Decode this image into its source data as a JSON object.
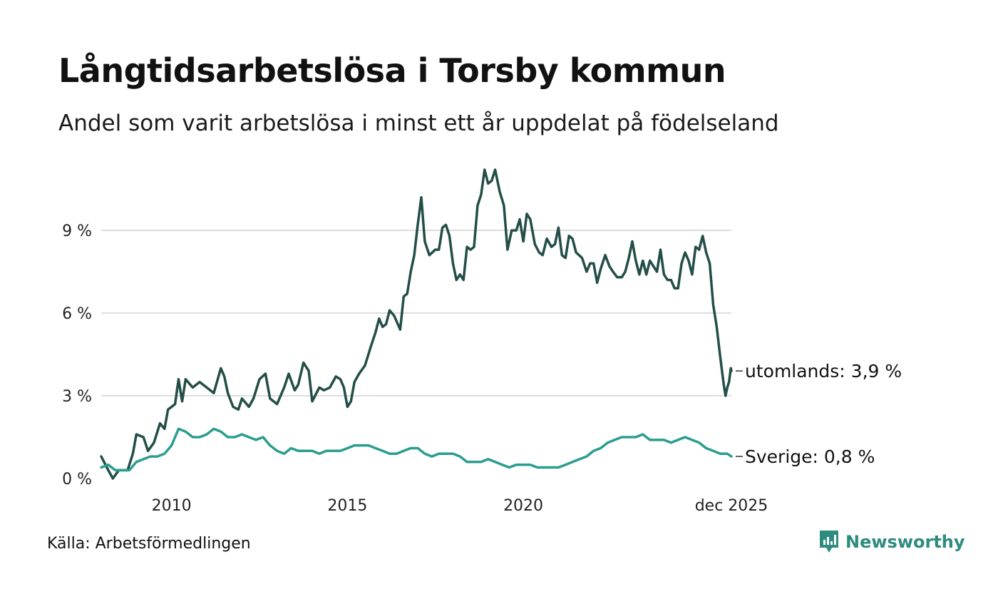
{
  "title": "Långtidsarbetslösa i Torsby kommun",
  "subtitle": "Andel som varit arbetslösa i minst ett år uppdelat på födelseland",
  "source": "Källa: Arbetsförmedlingen",
  "brand": "Newsworthy",
  "colors": {
    "utomlands": "#234e48",
    "sverige": "#2a9d8f",
    "grid": "#dddddd",
    "brand": "#2e8b7f"
  },
  "chart_data": {
    "type": "line",
    "title": "Långtidsarbetslösa i Torsby kommun",
    "xlabel": "",
    "ylabel": "",
    "xlim": [
      2008.0,
      2025.917
    ],
    "ylim": [
      0,
      11.2
    ],
    "yticks": [
      0,
      3,
      6,
      9
    ],
    "ytick_labels": [
      "0 %",
      "3 %",
      "6 %",
      "9 %"
    ],
    "xticks": [
      2010,
      2015,
      2020,
      2025.917
    ],
    "xtick_labels": [
      "2010",
      "2015",
      "2020",
      "dec 2025"
    ],
    "grid": true,
    "series": [
      {
        "name": "utomlands",
        "end_label": "utomlands: 3,9 %",
        "points": [
          [
            2008.0,
            0.8
          ],
          [
            2008.2,
            0.3
          ],
          [
            2008.33,
            0.0
          ],
          [
            2008.5,
            0.3
          ],
          [
            2008.75,
            0.3
          ],
          [
            2008.9,
            0.9
          ],
          [
            2009.0,
            1.6
          ],
          [
            2009.2,
            1.5
          ],
          [
            2009.33,
            1.0
          ],
          [
            2009.5,
            1.3
          ],
          [
            2009.67,
            2.0
          ],
          [
            2009.8,
            1.8
          ],
          [
            2009.9,
            2.5
          ],
          [
            2010.0,
            2.6
          ],
          [
            2010.1,
            2.7
          ],
          [
            2010.2,
            3.6
          ],
          [
            2010.3,
            2.8
          ],
          [
            2010.4,
            3.6
          ],
          [
            2010.6,
            3.3
          ],
          [
            2010.8,
            3.5
          ],
          [
            2011.0,
            3.3
          ],
          [
            2011.2,
            3.1
          ],
          [
            2011.4,
            4.0
          ],
          [
            2011.5,
            3.7
          ],
          [
            2011.6,
            3.1
          ],
          [
            2011.75,
            2.6
          ],
          [
            2011.9,
            2.5
          ],
          [
            2012.0,
            2.9
          ],
          [
            2012.2,
            2.6
          ],
          [
            2012.33,
            2.9
          ],
          [
            2012.5,
            3.6
          ],
          [
            2012.67,
            3.8
          ],
          [
            2012.8,
            2.9
          ],
          [
            2013.0,
            2.7
          ],
          [
            2013.2,
            3.3
          ],
          [
            2013.33,
            3.8
          ],
          [
            2013.5,
            3.2
          ],
          [
            2013.6,
            3.4
          ],
          [
            2013.75,
            4.2
          ],
          [
            2013.9,
            3.9
          ],
          [
            2014.0,
            2.8
          ],
          [
            2014.2,
            3.3
          ],
          [
            2014.33,
            3.2
          ],
          [
            2014.5,
            3.3
          ],
          [
            2014.67,
            3.7
          ],
          [
            2014.8,
            3.6
          ],
          [
            2014.9,
            3.3
          ],
          [
            2015.0,
            2.6
          ],
          [
            2015.1,
            2.8
          ],
          [
            2015.2,
            3.5
          ],
          [
            2015.33,
            3.8
          ],
          [
            2015.5,
            4.1
          ],
          [
            2015.67,
            4.8
          ],
          [
            2015.8,
            5.3
          ],
          [
            2015.9,
            5.8
          ],
          [
            2016.0,
            5.5
          ],
          [
            2016.1,
            5.6
          ],
          [
            2016.2,
            6.1
          ],
          [
            2016.33,
            5.9
          ],
          [
            2016.5,
            5.4
          ],
          [
            2016.6,
            6.6
          ],
          [
            2016.7,
            6.7
          ],
          [
            2016.8,
            7.5
          ],
          [
            2016.9,
            8.1
          ],
          [
            2017.0,
            9.2
          ],
          [
            2017.1,
            10.2
          ],
          [
            2017.2,
            8.6
          ],
          [
            2017.33,
            8.1
          ],
          [
            2017.5,
            8.3
          ],
          [
            2017.6,
            8.3
          ],
          [
            2017.7,
            9.1
          ],
          [
            2017.8,
            9.2
          ],
          [
            2017.9,
            8.8
          ],
          [
            2018.0,
            7.8
          ],
          [
            2018.1,
            7.2
          ],
          [
            2018.2,
            7.4
          ],
          [
            2018.3,
            7.2
          ],
          [
            2018.4,
            8.4
          ],
          [
            2018.5,
            8.3
          ],
          [
            2018.6,
            8.4
          ],
          [
            2018.7,
            9.9
          ],
          [
            2018.8,
            10.3
          ],
          [
            2018.9,
            11.2
          ],
          [
            2019.0,
            10.7
          ],
          [
            2019.1,
            10.8
          ],
          [
            2019.2,
            11.2
          ],
          [
            2019.33,
            10.4
          ],
          [
            2019.45,
            9.9
          ],
          [
            2019.55,
            8.3
          ],
          [
            2019.67,
            9.0
          ],
          [
            2019.8,
            9.0
          ],
          [
            2019.9,
            9.4
          ],
          [
            2020.0,
            8.6
          ],
          [
            2020.1,
            9.6
          ],
          [
            2020.2,
            9.4
          ],
          [
            2020.33,
            8.5
          ],
          [
            2020.45,
            8.2
          ],
          [
            2020.55,
            8.1
          ],
          [
            2020.67,
            8.7
          ],
          [
            2020.8,
            8.4
          ],
          [
            2020.9,
            8.5
          ],
          [
            2021.0,
            9.1
          ],
          [
            2021.1,
            8.1
          ],
          [
            2021.2,
            8.0
          ],
          [
            2021.3,
            8.8
          ],
          [
            2021.4,
            8.7
          ],
          [
            2021.5,
            8.2
          ],
          [
            2021.67,
            8.0
          ],
          [
            2021.8,
            7.5
          ],
          [
            2021.9,
            7.8
          ],
          [
            2022.0,
            7.8
          ],
          [
            2022.1,
            7.1
          ],
          [
            2022.2,
            7.6
          ],
          [
            2022.33,
            8.1
          ],
          [
            2022.45,
            7.7
          ],
          [
            2022.55,
            7.5
          ],
          [
            2022.67,
            7.3
          ],
          [
            2022.8,
            7.3
          ],
          [
            2022.9,
            7.5
          ],
          [
            2023.0,
            8.0
          ],
          [
            2023.1,
            8.6
          ],
          [
            2023.2,
            7.9
          ],
          [
            2023.3,
            7.4
          ],
          [
            2023.4,
            7.9
          ],
          [
            2023.5,
            7.4
          ],
          [
            2023.6,
            7.9
          ],
          [
            2023.7,
            7.7
          ],
          [
            2023.8,
            7.5
          ],
          [
            2023.9,
            8.3
          ],
          [
            2024.0,
            7.4
          ],
          [
            2024.1,
            7.2
          ],
          [
            2024.2,
            7.2
          ],
          [
            2024.3,
            6.9
          ],
          [
            2024.4,
            6.9
          ],
          [
            2024.5,
            7.8
          ],
          [
            2024.6,
            8.2
          ],
          [
            2024.7,
            7.9
          ],
          [
            2024.8,
            7.4
          ],
          [
            2024.9,
            8.4
          ],
          [
            2025.0,
            8.3
          ],
          [
            2025.1,
            8.8
          ],
          [
            2025.2,
            8.2
          ],
          [
            2025.3,
            7.8
          ],
          [
            2025.4,
            6.3
          ],
          [
            2025.5,
            5.5
          ],
          [
            2025.6,
            4.4
          ],
          [
            2025.7,
            3.4
          ],
          [
            2025.75,
            3.0
          ],
          [
            2025.8,
            3.3
          ],
          [
            2025.85,
            3.5
          ],
          [
            2025.9,
            4.0
          ],
          [
            2025.917,
            3.9
          ]
        ]
      },
      {
        "name": "Sverige",
        "end_label": "Sverige: 0,8 %",
        "points": [
          [
            2008.0,
            0.4
          ],
          [
            2008.2,
            0.5
          ],
          [
            2008.4,
            0.3
          ],
          [
            2008.6,
            0.3
          ],
          [
            2008.8,
            0.3
          ],
          [
            2009.0,
            0.6
          ],
          [
            2009.2,
            0.7
          ],
          [
            2009.4,
            0.8
          ],
          [
            2009.6,
            0.8
          ],
          [
            2009.8,
            0.9
          ],
          [
            2010.0,
            1.2
          ],
          [
            2010.1,
            1.5
          ],
          [
            2010.2,
            1.8
          ],
          [
            2010.4,
            1.7
          ],
          [
            2010.6,
            1.5
          ],
          [
            2010.8,
            1.5
          ],
          [
            2011.0,
            1.6
          ],
          [
            2011.2,
            1.8
          ],
          [
            2011.4,
            1.7
          ],
          [
            2011.6,
            1.5
          ],
          [
            2011.8,
            1.5
          ],
          [
            2012.0,
            1.6
          ],
          [
            2012.2,
            1.5
          ],
          [
            2012.4,
            1.4
          ],
          [
            2012.6,
            1.5
          ],
          [
            2012.8,
            1.2
          ],
          [
            2013.0,
            1.0
          ],
          [
            2013.2,
            0.9
          ],
          [
            2013.4,
            1.1
          ],
          [
            2013.6,
            1.0
          ],
          [
            2013.8,
            1.0
          ],
          [
            2014.0,
            1.0
          ],
          [
            2014.2,
            0.9
          ],
          [
            2014.4,
            1.0
          ],
          [
            2014.6,
            1.0
          ],
          [
            2014.8,
            1.0
          ],
          [
            2015.0,
            1.1
          ],
          [
            2015.2,
            1.2
          ],
          [
            2015.4,
            1.2
          ],
          [
            2015.6,
            1.2
          ],
          [
            2015.8,
            1.1
          ],
          [
            2016.0,
            1.0
          ],
          [
            2016.2,
            0.9
          ],
          [
            2016.4,
            0.9
          ],
          [
            2016.6,
            1.0
          ],
          [
            2016.8,
            1.1
          ],
          [
            2017.0,
            1.1
          ],
          [
            2017.2,
            0.9
          ],
          [
            2017.4,
            0.8
          ],
          [
            2017.6,
            0.9
          ],
          [
            2017.8,
            0.9
          ],
          [
            2018.0,
            0.9
          ],
          [
            2018.2,
            0.8
          ],
          [
            2018.4,
            0.6
          ],
          [
            2018.6,
            0.6
          ],
          [
            2018.8,
            0.6
          ],
          [
            2019.0,
            0.7
          ],
          [
            2019.2,
            0.6
          ],
          [
            2019.4,
            0.5
          ],
          [
            2019.6,
            0.4
          ],
          [
            2019.8,
            0.5
          ],
          [
            2020.0,
            0.5
          ],
          [
            2020.2,
            0.5
          ],
          [
            2020.4,
            0.4
          ],
          [
            2020.6,
            0.4
          ],
          [
            2020.8,
            0.4
          ],
          [
            2021.0,
            0.4
          ],
          [
            2021.2,
            0.5
          ],
          [
            2021.4,
            0.6
          ],
          [
            2021.6,
            0.7
          ],
          [
            2021.8,
            0.8
          ],
          [
            2022.0,
            1.0
          ],
          [
            2022.2,
            1.1
          ],
          [
            2022.4,
            1.3
          ],
          [
            2022.6,
            1.4
          ],
          [
            2022.8,
            1.5
          ],
          [
            2023.0,
            1.5
          ],
          [
            2023.2,
            1.5
          ],
          [
            2023.4,
            1.6
          ],
          [
            2023.6,
            1.4
          ],
          [
            2023.8,
            1.4
          ],
          [
            2024.0,
            1.4
          ],
          [
            2024.2,
            1.3
          ],
          [
            2024.4,
            1.4
          ],
          [
            2024.6,
            1.5
          ],
          [
            2024.8,
            1.4
          ],
          [
            2025.0,
            1.3
          ],
          [
            2025.2,
            1.1
          ],
          [
            2025.4,
            1.0
          ],
          [
            2025.6,
            0.9
          ],
          [
            2025.8,
            0.9
          ],
          [
            2025.917,
            0.8
          ]
        ]
      }
    ]
  }
}
